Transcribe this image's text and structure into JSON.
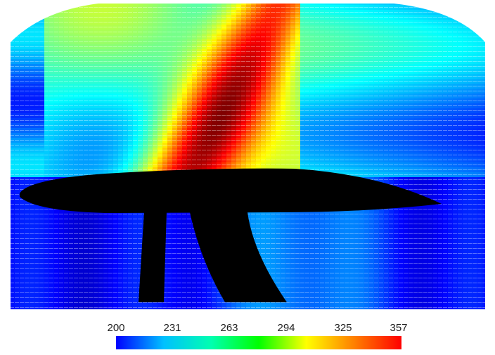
{
  "chart_data": {
    "type": "heatmap",
    "title": "",
    "xlabel": "",
    "ylabel": "",
    "colorbar": {
      "min": 200,
      "max": 357,
      "tick_labels": [
        "200",
        "231",
        "263",
        "294",
        "325",
        "357"
      ],
      "colormap": "jet",
      "colors": [
        "#0000ff",
        "#00c0ff",
        "#00ffb0",
        "#00ff00",
        "#ffff00",
        "#ff8000",
        "#ff0000"
      ]
    },
    "regions": [
      {
        "name": "upper-left",
        "value_range": [
          263,
          294
        ]
      },
      {
        "name": "upper-center",
        "value_range": [
          325,
          357
        ]
      },
      {
        "name": "upper-right",
        "value_range": [
          263,
          300
        ]
      },
      {
        "name": "lower",
        "value_range": [
          200,
          263
        ]
      }
    ],
    "object": {
      "name": "airfoil",
      "color": "#000000"
    }
  }
}
